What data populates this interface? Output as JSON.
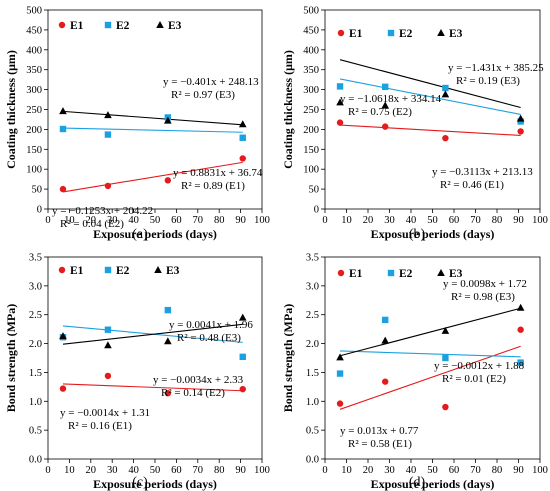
{
  "chart_data": [
    {
      "type": "scatter",
      "panel_label": "(a)",
      "xlabel": "Exposure periods (days)",
      "ylabel": "Coating thickness (μm)",
      "xlim": [
        0,
        100
      ],
      "ylim": [
        0,
        500
      ],
      "xticks": [
        "0",
        "10",
        "20",
        "30",
        "40",
        "50",
        "60",
        "70",
        "80",
        "90",
        "100"
      ],
      "yticks": [
        "0",
        "50",
        "100",
        "150",
        "200",
        "250",
        "300",
        "350",
        "400",
        "450",
        "500"
      ],
      "grid": false,
      "legend_position": "top-left",
      "series": [
        {
          "name": "E1",
          "color": "#e41a1c",
          "marker": "circle",
          "x": [
            7,
            28,
            56,
            91
          ],
          "y": [
            50,
            58,
            72,
            127
          ],
          "trend": [
            0.8831,
            36.74
          ]
        },
        {
          "name": "E2",
          "color": "#1ba1e2",
          "marker": "square",
          "x": [
            7,
            28,
            56,
            91
          ],
          "y": [
            201,
            187,
            230,
            179
          ],
          "trend": [
            -0.1253,
            204.22
          ]
        },
        {
          "name": "E3",
          "color": "#000000",
          "marker": "triangle",
          "x": [
            7,
            28,
            56,
            91
          ],
          "y": [
            246,
            236,
            222,
            213
          ],
          "trend": [
            -0.401,
            248.13
          ]
        }
      ],
      "annotations": [
        {
          "series": "E3",
          "line1": "y = −0.401x + 248.13",
          "line2": "R² = 0.97 (E3)"
        },
        {
          "series": "E2",
          "line1": "y = −0.1253x + 204.22",
          "line2": "R² = 0.04 (E2)"
        },
        {
          "series": "E1",
          "line1": "y = 0.8831x + 36.74",
          "line2": "R² = 0.89 (E1)"
        }
      ]
    },
    {
      "type": "scatter",
      "panel_label": "(b)",
      "xlabel": "Exposure periods (days)",
      "ylabel": "Coating thickness (μm)",
      "xlim": [
        0,
        100
      ],
      "ylim": [
        0,
        500
      ],
      "xticks": [
        "0",
        "10",
        "20",
        "30",
        "40",
        "50",
        "60",
        "70",
        "80",
        "90",
        "100"
      ],
      "yticks": [
        "0",
        "50",
        "100",
        "150",
        "200",
        "250",
        "300",
        "350",
        "400",
        "450",
        "500"
      ],
      "grid": false,
      "legend_position": "top-left",
      "series": [
        {
          "name": "E1",
          "color": "#e41a1c",
          "marker": "circle",
          "x": [
            7,
            28,
            56,
            91
          ],
          "y": [
            217,
            207,
            178,
            195
          ],
          "trend": [
            -0.3113,
            213.13
          ]
        },
        {
          "name": "E2",
          "color": "#1ba1e2",
          "marker": "square",
          "x": [
            7,
            28,
            56,
            91
          ],
          "y": [
            308,
            307,
            304,
            220
          ],
          "trend": [
            -1.0618,
            334.14
          ]
        },
        {
          "name": "E3",
          "color": "#000000",
          "marker": "triangle",
          "x": [
            7,
            28,
            56,
            91
          ],
          "y": [
            268,
            260,
            288,
            227
          ],
          "trend": [
            -1.431,
            385.25
          ]
        }
      ],
      "annotations": [
        {
          "series": "E3",
          "line1": "y = −1.431x + 385.25",
          "line2": "R² = 0.19 (E3)"
        },
        {
          "series": "E2",
          "line1": "y = −1.0618x + 334.14",
          "line2": "R² = 0.75 (E2)"
        },
        {
          "series": "E1",
          "line1": "y = −0.3113x + 213.13",
          "line2": "R² = 0.46 (E1)"
        }
      ]
    },
    {
      "type": "scatter",
      "panel_label": "(c)",
      "xlabel": "Exposure periods (days)",
      "ylabel": "Bond strength (MPa)",
      "xlim": [
        0,
        100
      ],
      "ylim": [
        0,
        3.5
      ],
      "xticks": [
        "0",
        "10",
        "20",
        "30",
        "40",
        "50",
        "60",
        "70",
        "80",
        "90",
        "100"
      ],
      "yticks": [
        "0.0",
        "0.5",
        "1.0",
        "1.5",
        "2.0",
        "2.5",
        "3.0",
        "3.5"
      ],
      "grid": false,
      "legend_position": "top-left",
      "series": [
        {
          "name": "E1",
          "color": "#e41a1c",
          "marker": "circle",
          "x": [
            7,
            28,
            56,
            91
          ],
          "y": [
            1.22,
            1.44,
            1.14,
            1.21
          ],
          "trend": [
            -0.0014,
            1.31
          ]
        },
        {
          "name": "E2",
          "color": "#1ba1e2",
          "marker": "square",
          "x": [
            7,
            28,
            56,
            91
          ],
          "y": [
            2.11,
            2.24,
            2.58,
            1.77
          ],
          "trend": [
            -0.0034,
            2.33
          ]
        },
        {
          "name": "E3",
          "color": "#000000",
          "marker": "triangle",
          "x": [
            7,
            28,
            56,
            91
          ],
          "y": [
            2.13,
            1.97,
            2.04,
            2.45
          ],
          "trend": [
            0.0041,
            1.96
          ]
        }
      ],
      "annotations": [
        {
          "series": "E3",
          "line1": "y = 0.0041x + 1.96",
          "line2": "R² = 0.48 (E3)"
        },
        {
          "series": "E2",
          "line1": "y = −0.0034x + 2.33",
          "line2": "R² = 0.14 (E2)"
        },
        {
          "series": "E1",
          "line1": "y = −0.0014x + 1.31",
          "line2": "R² = 0.16 (E1)"
        }
      ]
    },
    {
      "type": "scatter",
      "panel_label": "(d)",
      "xlabel": "Exposure periods (days)",
      "ylabel": "Bond strength (MPa)",
      "xlim": [
        0,
        100
      ],
      "ylim": [
        0,
        3.5
      ],
      "xticks": [
        "0",
        "10",
        "20",
        "30",
        "40",
        "50",
        "60",
        "70",
        "80",
        "90",
        "100"
      ],
      "yticks": [
        "0.0",
        "0.5",
        "1.0",
        "1.5",
        "2.0",
        "2.5",
        "3.0",
        "3.5"
      ],
      "grid": false,
      "legend_position": "top-left",
      "series": [
        {
          "name": "E1",
          "color": "#e41a1c",
          "marker": "circle",
          "x": [
            7,
            28,
            56,
            91
          ],
          "y": [
            0.96,
            1.34,
            0.9,
            2.24
          ],
          "trend": [
            0.013,
            0.77
          ]
        },
        {
          "name": "E2",
          "color": "#1ba1e2",
          "marker": "square",
          "x": [
            7,
            28,
            56,
            91
          ],
          "y": [
            1.48,
            2.41,
            1.75,
            1.67
          ],
          "trend": [
            -0.0012,
            1.88
          ]
        },
        {
          "name": "E3",
          "color": "#000000",
          "marker": "triangle",
          "x": [
            7,
            28,
            56,
            91
          ],
          "y": [
            1.76,
            2.05,
            2.22,
            2.62
          ],
          "trend": [
            0.0098,
            1.72
          ]
        }
      ],
      "annotations": [
        {
          "series": "E3",
          "line1": "y = 0.0098x + 1.72",
          "line2": "R² = 0.98 (E3)"
        },
        {
          "series": "E2",
          "line1": "y = −0.0012x + 1.88",
          "line2": "R² = 0.01 (E2)"
        },
        {
          "series": "E1",
          "line1": "y = 0.013x + 0.77",
          "line2": "R² = 0.58 (E1)"
        }
      ]
    }
  ]
}
